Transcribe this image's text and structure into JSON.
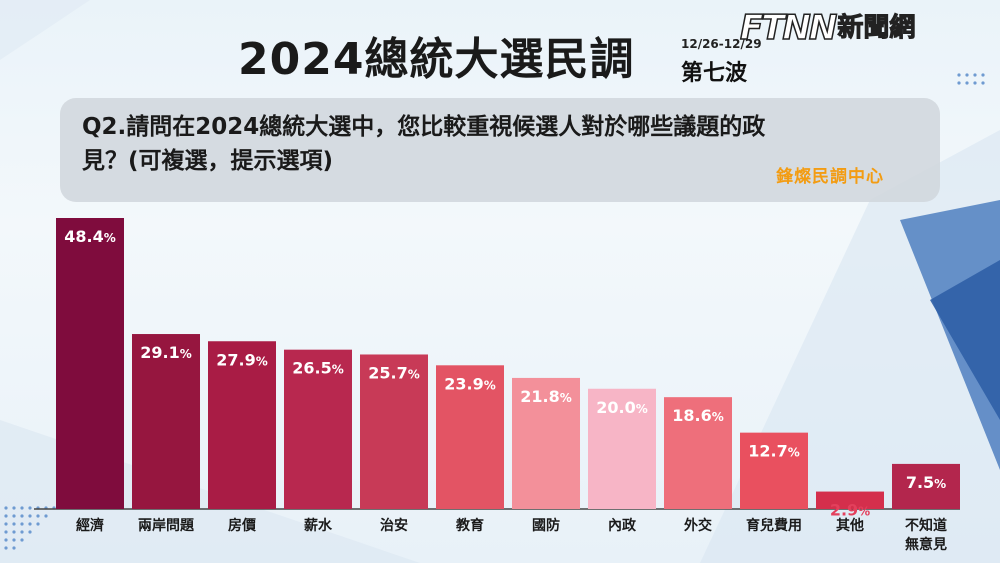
{
  "header": {
    "title": "2024總統大選民調",
    "date": "12/26-12/29",
    "wave": "第七波",
    "logo_mark": "FTNN",
    "logo_text": "新聞網"
  },
  "question": {
    "line1": "Q2.請問在2024總統大選中，您比較重視候選人對於哪些議題的政",
    "line2": "見？(可複選，提示選項)",
    "source": "鋒燦民調中心"
  },
  "chart_data": {
    "type": "bar",
    "categories": [
      "經濟",
      "兩岸問題",
      "房價",
      "薪水",
      "治安",
      "教育",
      "國防",
      "內政",
      "外交",
      "育兒費用",
      "其他",
      "不知道\n無意見"
    ],
    "values": [
      48.4,
      29.1,
      27.9,
      26.5,
      25.7,
      23.9,
      21.8,
      20.0,
      18.6,
      12.7,
      2.9,
      7.5
    ],
    "value_labels": [
      "48.4",
      "29.1",
      "27.9",
      "26.5",
      "25.7",
      "23.9",
      "21.8",
      "20.0",
      "18.6",
      "12.7",
      "2.9",
      "7.5"
    ],
    "unit": "%",
    "colors": [
      "#7f0c3d",
      "#96163f",
      "#a91c45",
      "#b8284f",
      "#c83a57",
      "#e35464",
      "#f3909a",
      "#f7b5c6",
      "#ee6f7b",
      "#e9505f",
      "#d42f4c",
      "#b3264d"
    ],
    "label_colors": [
      "#ffffff",
      "#ffffff",
      "#ffffff",
      "#ffffff",
      "#ffffff",
      "#ffffff",
      "#ffffff",
      "#ffffff",
      "#ffffff",
      "#ffffff",
      "#e3405c",
      "#ffffff"
    ],
    "ylim": [
      0,
      50
    ],
    "grid": false
  }
}
